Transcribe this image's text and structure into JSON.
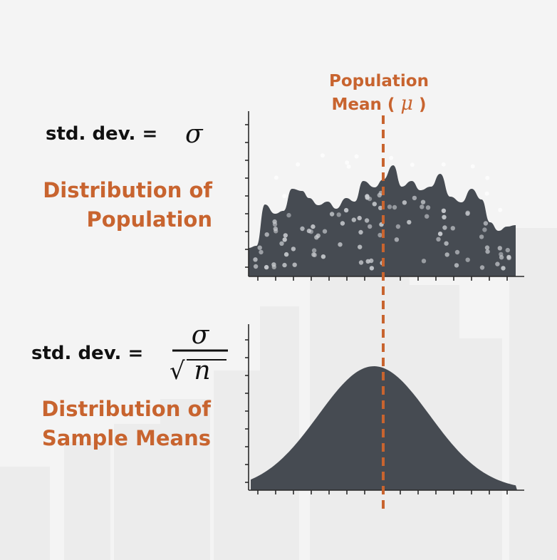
{
  "mean_label": {
    "line1": "Population",
    "line2_prefix": "Mean (",
    "mu": "μ",
    "line2_suffix": ")"
  },
  "population": {
    "std_prefix": "std. dev. =",
    "sigma": "σ",
    "title_line1": "Distribution of",
    "title_line2": "Population"
  },
  "sample": {
    "std_prefix": "std. dev. =",
    "numerator": "σ",
    "radical": "√",
    "denominator": "n",
    "title_line1": "Distribution of",
    "title_line2": "Sample Means"
  },
  "colors": {
    "accent": "#c8642f",
    "fill": "#464b52",
    "text": "#111111",
    "background": "#f4f4f4"
  },
  "icons": [
    "dashed-mean-line",
    "normal-curve",
    "wavy-population-curve"
  ]
}
